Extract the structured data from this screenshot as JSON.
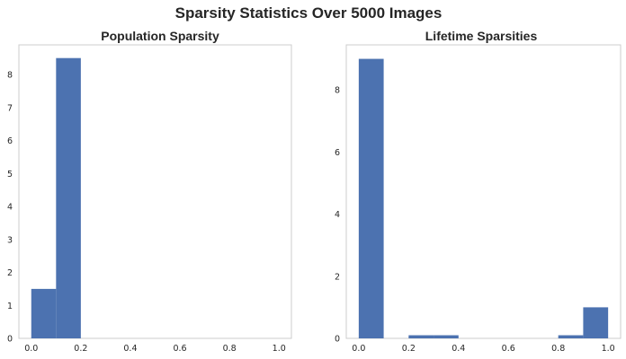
{
  "figure": {
    "title": "Sparsity Statistics Over 5000 Images",
    "bar_color": "#4c72b0",
    "grid": false
  },
  "chart_data": [
    {
      "type": "bar",
      "title": "Population Sparsity",
      "xlabel": "",
      "ylabel": "",
      "xlim": [
        -0.05,
        1.05
      ],
      "ylim": [
        0,
        8.9
      ],
      "bins": [
        {
          "x0": 0.0,
          "x1": 0.1,
          "value": 1.5
        },
        {
          "x0": 0.1,
          "x1": 0.2,
          "value": 8.5
        }
      ],
      "xticks": [
        0.0,
        0.2,
        0.4,
        0.6,
        0.8,
        1.0
      ],
      "xtick_labels": [
        "0.0",
        "0.2",
        "0.4",
        "0.6",
        "0.8",
        "1.0"
      ],
      "yticks": [
        0,
        1,
        2,
        3,
        4,
        5,
        6,
        7,
        8
      ],
      "ytick_labels": [
        "0",
        "1",
        "2",
        "3",
        "4",
        "5",
        "6",
        "7",
        "8"
      ]
    },
    {
      "type": "bar",
      "title": "Lifetime Sparsities",
      "xlabel": "",
      "ylabel": "",
      "xlim": [
        -0.05,
        1.05
      ],
      "ylim": [
        0,
        9.45
      ],
      "bins": [
        {
          "x0": 0.0,
          "x1": 0.1,
          "value": 9.0
        },
        {
          "x0": 0.1,
          "x1": 0.2,
          "value": 0.0
        },
        {
          "x0": 0.2,
          "x1": 0.3,
          "value": 0.1
        },
        {
          "x0": 0.3,
          "x1": 0.4,
          "value": 0.1
        },
        {
          "x0": 0.4,
          "x1": 0.5,
          "value": 0.0
        },
        {
          "x0": 0.5,
          "x1": 0.6,
          "value": 0.0
        },
        {
          "x0": 0.6,
          "x1": 0.7,
          "value": 0.0
        },
        {
          "x0": 0.7,
          "x1": 0.8,
          "value": 0.0
        },
        {
          "x0": 0.8,
          "x1": 0.9,
          "value": 0.1
        },
        {
          "x0": 0.9,
          "x1": 1.0,
          "value": 1.0
        }
      ],
      "xticks": [
        0.0,
        0.2,
        0.4,
        0.6,
        0.8,
        1.0
      ],
      "xtick_labels": [
        "0.0",
        "0.2",
        "0.4",
        "0.6",
        "0.8",
        "1.0"
      ],
      "yticks": [
        0,
        2,
        4,
        6,
        8
      ],
      "ytick_labels": [
        "0",
        "2",
        "4",
        "6",
        "8"
      ]
    }
  ]
}
